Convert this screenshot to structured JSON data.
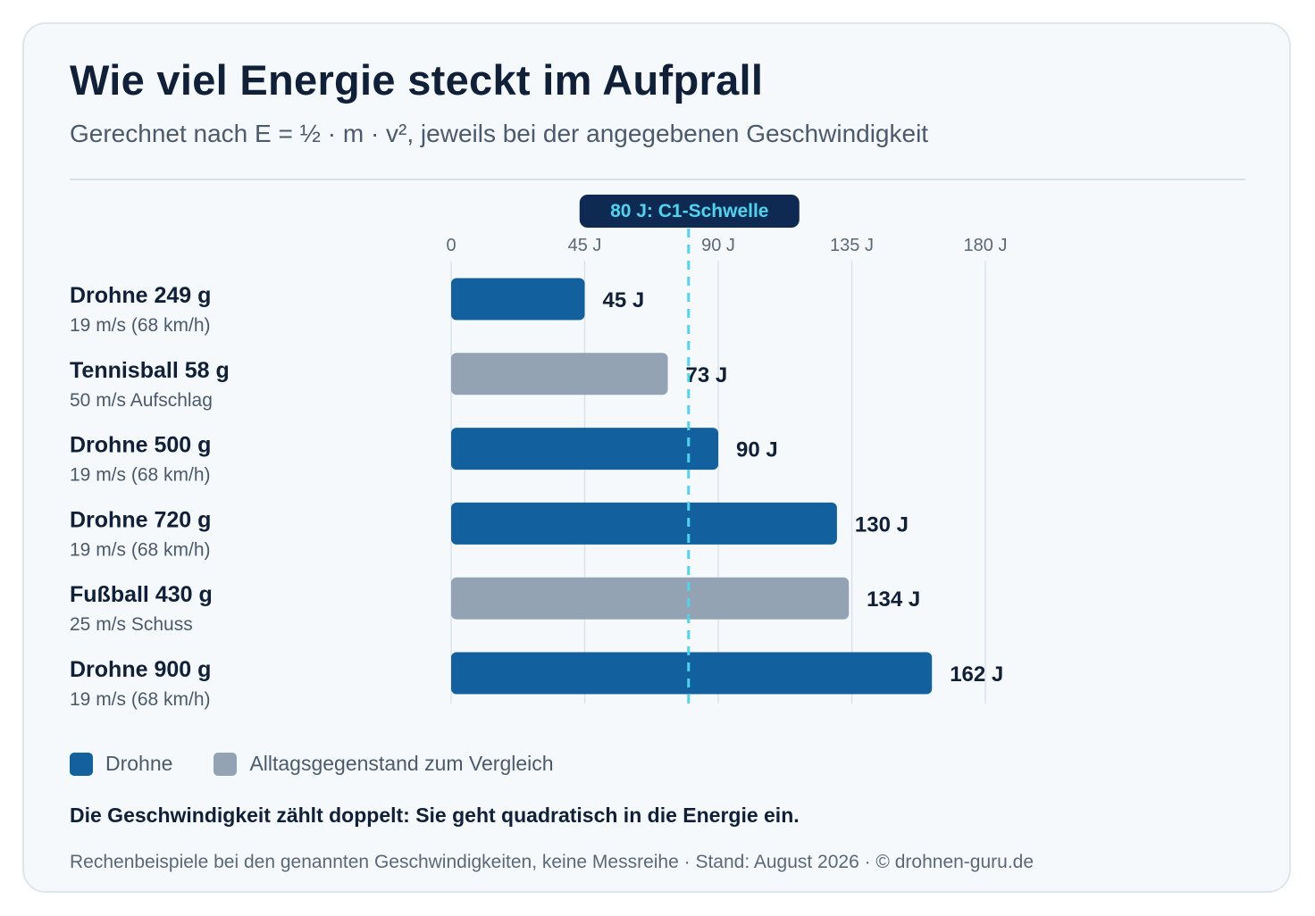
{
  "title": "Wie viel Energie steckt im Aufprall",
  "subtitle": "Gerechnet nach E = ½ · m · v², jeweils bei der angegebenen Geschwindigkeit",
  "note": "Die Geschwindigkeit zählt doppelt: Sie geht quadratisch in die Energie ein.",
  "footer": "Rechenbeispiele bei den genannten Geschwindigkeiten, keine Messreihe · Stand: August 2026 · © drohnen-guru.de",
  "legend": {
    "drone_label": "Drohne",
    "object_label": "Alltagsgegenstand zum Vergleich"
  },
  "colors": {
    "drone": "#12609e",
    "object": "#94a3b4",
    "threshold": "#4fd4ef",
    "threshold_label_bg": "#0f2a52",
    "grid": "#dbe3ec"
  },
  "chart_data": {
    "type": "bar",
    "orientation": "horizontal",
    "xlim": [
      0,
      180
    ],
    "ticks": [
      {
        "value": 0,
        "label": "0"
      },
      {
        "value": 45,
        "label": "45 J"
      },
      {
        "value": 90,
        "label": "90 J"
      },
      {
        "value": 135,
        "label": "135 J"
      },
      {
        "value": 180,
        "label": "180 J"
      }
    ],
    "grid": true,
    "threshold": {
      "value": 80,
      "label": "80 J: C1-Schwelle"
    },
    "bars": [
      {
        "name": "Drohne 249 g",
        "detail": "19 m/s (68 km/h)",
        "value": 45,
        "value_label": "45 J",
        "kind": "drone"
      },
      {
        "name": "Tennisball 58 g",
        "detail": "50 m/s Aufschlag",
        "value": 73,
        "value_label": "73 J",
        "kind": "object"
      },
      {
        "name": "Drohne 500 g",
        "detail": "19 m/s (68 km/h)",
        "value": 90,
        "value_label": "90 J",
        "kind": "drone"
      },
      {
        "name": "Drohne 720 g",
        "detail": "19 m/s (68 km/h)",
        "value": 130,
        "value_label": "130 J",
        "kind": "drone"
      },
      {
        "name": "Fußball 430 g",
        "detail": "25 m/s Schuss",
        "value": 134,
        "value_label": "134 J",
        "kind": "object"
      },
      {
        "name": "Drohne 900 g",
        "detail": "19 m/s (68 km/h)",
        "value": 162,
        "value_label": "162 J",
        "kind": "drone"
      }
    ]
  }
}
